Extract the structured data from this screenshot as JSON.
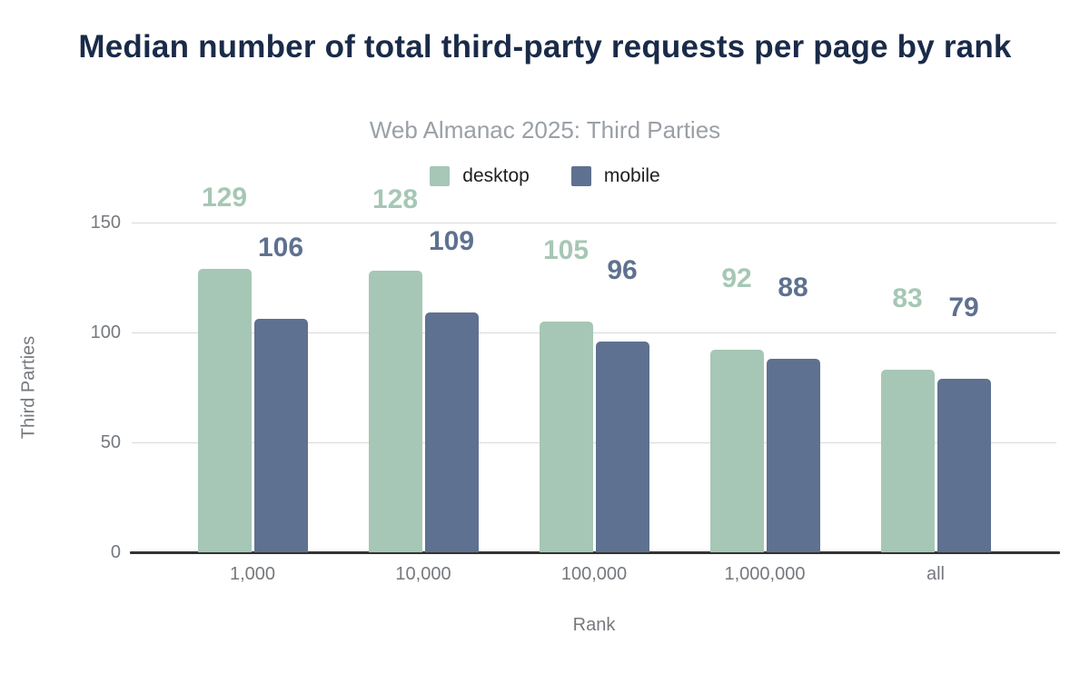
{
  "title": "Median number of total third-party requests per page by rank",
  "subtitle": "Web Almanac 2025: Third Parties",
  "colors": {
    "title_text": "#1a2b49",
    "subtitle_text": "#9aa0a6",
    "axis_text": "#75797e",
    "gridline": "#d9d9d9",
    "baseline": "#333333",
    "desktop": "#a6c7b5",
    "mobile": "#5f7190"
  },
  "legend": {
    "items": [
      {
        "label": "desktop",
        "color": "#a6c7b5"
      },
      {
        "label": "mobile",
        "color": "#5f7190"
      }
    ]
  },
  "chart_data": {
    "type": "bar",
    "categories": [
      "1,000",
      "10,000",
      "100,000",
      "1,000,000",
      "all"
    ],
    "series": [
      {
        "name": "desktop",
        "color": "#a6c7b5",
        "values": [
          129,
          128,
          105,
          92,
          83
        ]
      },
      {
        "name": "mobile",
        "color": "#5f7190",
        "values": [
          106,
          109,
          96,
          88,
          79
        ]
      }
    ],
    "title": "Median number of total third-party requests per page by rank",
    "subtitle": "Web Almanac 2025: Third Parties",
    "xlabel": "Rank",
    "ylabel": "Third Parties",
    "ylim": [
      0,
      150
    ],
    "yticks": [
      0,
      50,
      100,
      150
    ],
    "grid": true,
    "legend_position": "top",
    "data_labels": true
  }
}
